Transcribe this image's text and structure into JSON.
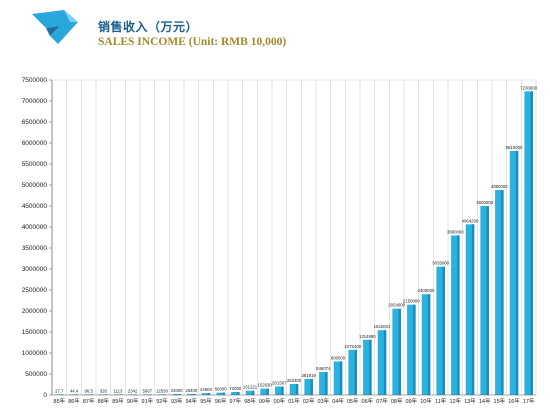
{
  "header": {
    "title_cn": "销售收入（万元）",
    "title_en": "SALES INCOME (Unit: RMB 10,000)"
  },
  "colors": {
    "bar": "#2bb3df",
    "bar_dark": "#1b8cc0",
    "title_cn": "#1a5f8e",
    "title_en": "#a8862a",
    "logo": "#2aa7da"
  },
  "chart_data": {
    "type": "bar",
    "categories": [
      "85年",
      "86年",
      "87年",
      "88年",
      "89年",
      "90年",
      "91年",
      "92年",
      "93年",
      "94年",
      "95年",
      "96年",
      "97年",
      "98年",
      "99年",
      "00年",
      "01年",
      "02年",
      "03年",
      "04年",
      "05年",
      "06年",
      "07年",
      "08年",
      "09年",
      "10年",
      "11年",
      "12年",
      "13年",
      "14年",
      "15年",
      "16年",
      "17年"
    ],
    "values": [
      27.7,
      44.4,
      96.5,
      326,
      1113,
      2342,
      5967,
      12530,
      24000,
      25400,
      44900,
      56000,
      72000,
      101221,
      152630,
      201567,
      262400,
      381919,
      546074,
      800000,
      1075400,
      1314880,
      1542001,
      2054000,
      2150000,
      2400000,
      3055000,
      3800000,
      4064200,
      4500000,
      4880000,
      5810000,
      7230000
    ],
    "labels": [
      "27.7",
      "44.4",
      "96.5",
      "326",
      "1113",
      "2342",
      "5967",
      "12530",
      "24000",
      "25400",
      "44900",
      "56000",
      "72000",
      "101221",
      "152630",
      "201567",
      "262400",
      "381919",
      "546074",
      "800000",
      "1075400",
      "1314880",
      "1542001",
      "2054000",
      "2150000",
      "2400000",
      "3055000",
      "3800000",
      "4064200",
      "4500000",
      "4880000",
      "5810000",
      "7230000"
    ],
    "yticks": [
      "0",
      "500000",
      "1000000",
      "1500000",
      "2000000",
      "2500000",
      "3000000",
      "3500000",
      "4000000",
      "4500000",
      "5000000",
      "5500000",
      "6000000",
      "6500000",
      "7000000",
      "7500000"
    ],
    "ylim": [
      0,
      7500000
    ],
    "grid": "vertical",
    "title": "销售收入（万元）",
    "xlabel": "",
    "ylabel": ""
  }
}
